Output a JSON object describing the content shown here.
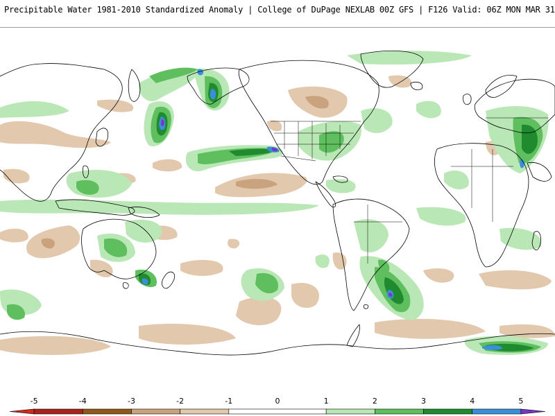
{
  "header": {
    "title": "Precipitable Water 1981-2010 Standardized Anomaly | College of DuPage NEXLAB  00Z GFS | F126 Valid: 06Z MON MAR 31 2025"
  },
  "map": {
    "projection": "equirectangular",
    "field": "precipitable-water-standardized-anomaly",
    "coastline_color": "#000000",
    "features": [
      {
        "id": "nw-pacific-moisture-plume",
        "anomaly": 5
      },
      {
        "id": "alaska-gulf-moisture-plume",
        "anomaly": 5
      },
      {
        "id": "ne-pacific-atmospheric-river",
        "anomaly": 5
      },
      {
        "id": "eastern-us-moisture",
        "anomaly": 4
      },
      {
        "id": "south-atlantic-moisture-plume",
        "anomaly": 5
      },
      {
        "id": "southern-ocean-plume-south-africa",
        "anomaly": 5
      },
      {
        "id": "east-australia-moisture",
        "anomaly": 5
      },
      {
        "id": "east-europe-moisture",
        "anomaly": 4
      },
      {
        "id": "east-pacific-dry-band",
        "anomaly": -2
      },
      {
        "id": "south-pacific-dry-swirl",
        "anomaly": -2
      }
    ]
  },
  "colorbar": {
    "min": -5.5,
    "max": 5.5,
    "ticks": [
      "-5",
      "-4",
      "-3",
      "-2",
      "-1",
      "0",
      "1",
      "2",
      "3",
      "4",
      "5"
    ],
    "tick_values": [
      -5,
      -4,
      -3,
      -2,
      -1,
      0,
      1,
      2,
      3,
      4,
      5
    ],
    "bins": [
      {
        "from": -5.5,
        "to": -5,
        "color": "#d42a1a"
      },
      {
        "from": -5,
        "to": -4,
        "color": "#a8231c"
      },
      {
        "from": -4,
        "to": -3,
        "color": "#8f5a1c"
      },
      {
        "from": -3,
        "to": -2,
        "color": "#c9a27e"
      },
      {
        "from": -2,
        "to": -1,
        "color": "#e2c9ae"
      },
      {
        "from": -1,
        "to": 1,
        "color": "#ffffff"
      },
      {
        "from": 1,
        "to": 2,
        "color": "#b9e7b6"
      },
      {
        "from": 2,
        "to": 3,
        "color": "#5fbf5f"
      },
      {
        "from": 3,
        "to": 4,
        "color": "#1f8a2e"
      },
      {
        "from": 4,
        "to": 5,
        "color": "#3a8fd8"
      },
      {
        "from": 5,
        "to": 5.5,
        "color": "#7a35c4"
      }
    ]
  }
}
